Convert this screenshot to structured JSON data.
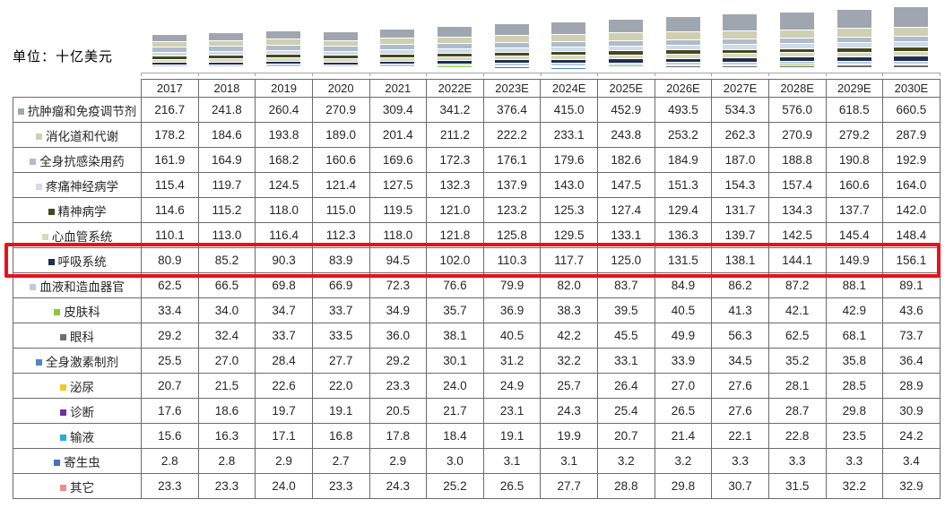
{
  "unit_label": "单位：十亿美元",
  "colors": {
    "highlight_red": "#e6131c",
    "axis_gray": "#a6a6a6",
    "grid_border": "#6b6b6b"
  },
  "chart_data": {
    "type": "bar",
    "stacked": true,
    "title": "",
    "unit": "十亿美元",
    "legend_position": "table-row-labels",
    "grid": false,
    "highlighted_series": "呼吸系统",
    "categories": [
      "2017",
      "2018",
      "2019",
      "2020",
      "2021",
      "2022E",
      "2023E",
      "2024E",
      "2025E",
      "2026E",
      "2027E",
      "2028E",
      "2029E",
      "2030E"
    ],
    "series": [
      {
        "name": "抗肿瘤和免疫调节剂",
        "color": "#a0a6b0",
        "values": [
          216.7,
          241.8,
          260.4,
          270.9,
          309.4,
          341.2,
          376.4,
          415.0,
          452.9,
          493.5,
          534.3,
          576.0,
          618.5,
          660.5
        ]
      },
      {
        "name": "消化道和代谢",
        "color": "#cfcfb2",
        "values": [
          178.2,
          184.6,
          193.8,
          189.0,
          201.4,
          211.2,
          222.2,
          233.1,
          243.8,
          253.2,
          262.3,
          270.9,
          279.2,
          287.9
        ]
      },
      {
        "name": "全身抗感染用药",
        "color": "#aebccb",
        "values": [
          161.9,
          164.9,
          168.2,
          160.6,
          169.6,
          172.3,
          176.1,
          179.6,
          182.6,
          184.9,
          187.0,
          188.8,
          190.8,
          192.9
        ]
      },
      {
        "name": "疼痛神经病学",
        "color": "#cfdbe8",
        "values": [
          115.4,
          119.7,
          124.5,
          121.4,
          127.5,
          132.3,
          137.9,
          143.0,
          147.5,
          151.3,
          154.3,
          157.4,
          160.6,
          164.0
        ]
      },
      {
        "name": "精神病学",
        "color": "#45481f",
        "values": [
          114.6,
          115.2,
          118.0,
          115.0,
          119.5,
          121.0,
          123.2,
          125.3,
          127.4,
          129.4,
          131.7,
          134.3,
          137.7,
          142.0
        ]
      },
      {
        "name": "心血管系统",
        "color": "#d9d9bb",
        "values": [
          110.1,
          113.0,
          116.4,
          112.3,
          118.0,
          121.8,
          125.8,
          129.5,
          133.1,
          136.3,
          139.7,
          142.5,
          145.4,
          148.4
        ]
      },
      {
        "name": "呼吸系统",
        "color": "#1f2e51",
        "values": [
          80.9,
          85.2,
          90.3,
          83.9,
          94.5,
          102.0,
          110.3,
          117.7,
          125.0,
          131.5,
          138.1,
          144.1,
          149.9,
          156.1
        ]
      },
      {
        "name": "血液和造血器官",
        "color": "#b9cde1",
        "values": [
          62.5,
          66.5,
          69.8,
          66.9,
          72.3,
          76.6,
          79.9,
          82.0,
          83.7,
          84.9,
          86.2,
          87.2,
          88.1,
          89.1
        ]
      },
      {
        "name": "皮肤科",
        "color": "#8cc63f",
        "values": [
          33.4,
          34.0,
          34.7,
          33.7,
          34.9,
          35.7,
          36.9,
          38.3,
          39.5,
          40.5,
          41.3,
          42.1,
          42.9,
          43.6
        ]
      },
      {
        "name": "眼科",
        "color": "#6e6e6e",
        "values": [
          29.2,
          32.4,
          33.7,
          33.5,
          36.0,
          38.1,
          40.5,
          42.2,
          45.5,
          49.9,
          56.3,
          62.5,
          68.1,
          73.7
        ]
      },
      {
        "name": "全身激素制剂",
        "color": "#4e86c8",
        "values": [
          25.5,
          27.0,
          28.4,
          27.7,
          29.2,
          30.1,
          31.2,
          32.2,
          33.1,
          33.9,
          34.5,
          35.2,
          35.8,
          36.4
        ]
      },
      {
        "name": "泌尿",
        "color": "#f0c929",
        "values": [
          20.7,
          21.5,
          22.6,
          22.0,
          23.3,
          24.0,
          24.9,
          25.7,
          26.4,
          27.0,
          27.6,
          28.1,
          28.5,
          28.9
        ]
      },
      {
        "name": "诊断",
        "color": "#7030a0",
        "values": [
          17.6,
          18.6,
          19.7,
          19.1,
          20.5,
          21.7,
          23.1,
          24.3,
          25.4,
          26.5,
          27.6,
          28.7,
          29.8,
          30.9
        ]
      },
      {
        "name": "输液",
        "color": "#29abe2",
        "values": [
          15.6,
          16.3,
          17.1,
          16.8,
          17.8,
          18.4,
          19.1,
          19.9,
          20.7,
          21.4,
          22.1,
          22.8,
          23.5,
          24.2
        ]
      },
      {
        "name": "寄生虫",
        "color": "#4472c4",
        "values": [
          2.8,
          2.8,
          2.9,
          2.7,
          2.9,
          3.0,
          3.1,
          3.1,
          3.2,
          3.2,
          3.3,
          3.3,
          3.3,
          3.4
        ]
      },
      {
        "name": "其它",
        "color": "#f28b8b",
        "values": [
          23.3,
          23.3,
          24.0,
          23.3,
          24.3,
          25.2,
          26.5,
          27.7,
          28.8,
          29.8,
          30.7,
          31.5,
          32.2,
          32.9
        ]
      }
    ]
  }
}
